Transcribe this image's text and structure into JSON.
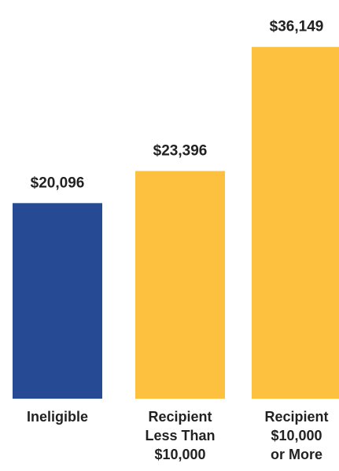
{
  "chart_data": {
    "type": "bar",
    "categories": [
      [
        "Ineligible"
      ],
      [
        "Recipient",
        "Less Than",
        "$10,000"
      ],
      [
        "Recipient",
        "$10,000",
        "or More"
      ]
    ],
    "values": [
      20096,
      23396,
      36149
    ],
    "value_labels": [
      "$20,096",
      "$23,396",
      "$36,149"
    ],
    "colors": [
      "#264A93",
      "#FDC03F",
      "#FDC03F"
    ],
    "title": "",
    "xlabel": "",
    "ylabel": "",
    "ylim": [
      0,
      40000
    ],
    "grid": false
  }
}
